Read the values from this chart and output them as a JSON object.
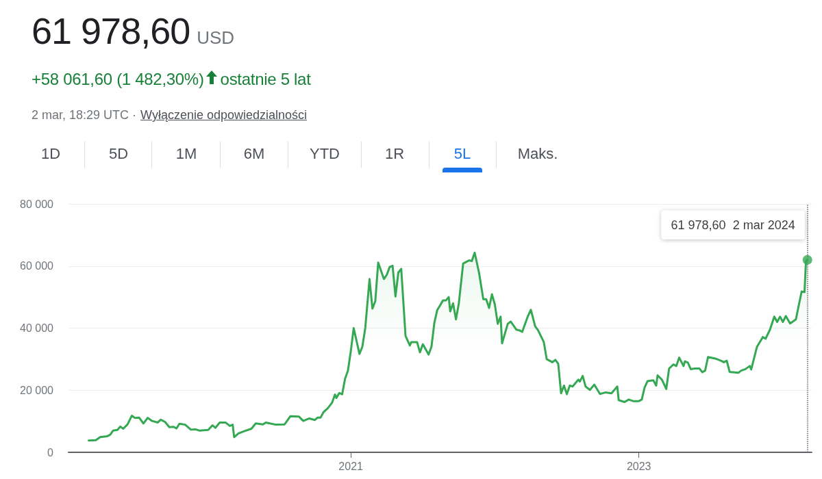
{
  "chart_data": {
    "type": "area",
    "title": "61 978,60",
    "subtitle": "+58 061,60 (1 482,30%)",
    "annotations": [
      "USD",
      "ostatnie 5 lat",
      "2 mar, 18:29 UTC ·",
      "Wyłączenie odpowiedzialności",
      "1D",
      "5D",
      "1M",
      "6M",
      "YTD",
      "1R",
      "5L",
      "Maks.",
      {
        "text": "61 978,60  2 mar 2024",
        "x": 2024.17,
        "y": 61978.6
      }
    ],
    "x": [
      2019.18,
      2019.23,
      2019.26,
      2019.31,
      2019.33,
      2019.35,
      2019.38,
      2019.4,
      2019.42,
      2019.45,
      2019.48,
      2019.5,
      2019.53,
      2019.56,
      2019.59,
      2019.62,
      2019.66,
      2019.68,
      2019.71,
      2019.74,
      2019.77,
      2019.79,
      2019.81,
      2019.85,
      2019.89,
      2019.92,
      2019.95,
      2020.01,
      2020.04,
      2020.06,
      2020.09,
      2020.13,
      2020.16,
      2020.18,
      2020.19,
      2020.22,
      2020.26,
      2020.31,
      2020.34,
      2020.39,
      2020.41,
      2020.48,
      2020.54,
      2020.55,
      2020.58,
      2020.64,
      2020.67,
      2020.71,
      2020.75,
      2020.77,
      2020.79,
      2020.81,
      2020.84,
      2020.87,
      2020.89,
      2020.9,
      2020.92,
      2020.94,
      2020.96,
      2020.98,
      2021.0,
      2021.02,
      2021.06,
      2021.08,
      2021.1,
      2021.13,
      2021.15,
      2021.17,
      2021.19,
      2021.23,
      2021.25,
      2021.27,
      2021.29,
      2021.31,
      2021.33,
      2021.35,
      2021.38,
      2021.41,
      2021.42,
      2021.46,
      2021.48,
      2021.5,
      2021.54,
      2021.56,
      2021.58,
      2021.6,
      2021.64,
      2021.66,
      2021.68,
      2021.69,
      2021.71,
      2021.73,
      2021.75,
      2021.78,
      2021.82,
      2021.84,
      2021.86,
      2021.89,
      2021.92,
      2021.94,
      2021.96,
      2021.98,
      2022.0,
      2022.02,
      2022.04,
      2022.05,
      2022.09,
      2022.11,
      2022.15,
      2022.17,
      2022.19,
      2022.23,
      2022.25,
      2022.28,
      2022.3,
      2022.34,
      2022.36,
      2022.4,
      2022.42,
      2022.44,
      2022.46,
      2022.48,
      2022.5,
      2022.52,
      2022.54,
      2022.58,
      2022.59,
      2022.61,
      2022.63,
      2022.66,
      2022.69,
      2022.73,
      2022.77,
      2022.81,
      2022.85,
      2022.86,
      2022.9,
      2022.93,
      2022.96,
      2023.0,
      2023.02,
      2023.04,
      2023.06,
      2023.1,
      2023.12,
      2023.13,
      2023.16,
      2023.19,
      2023.21,
      2023.24,
      2023.26,
      2023.28,
      2023.31,
      2023.32,
      2023.34,
      2023.36,
      2023.39,
      2023.42,
      2023.44,
      2023.46,
      2023.48,
      2023.53,
      2023.57,
      2023.59,
      2023.61,
      2023.63,
      2023.69,
      2023.71,
      2023.74,
      2023.77,
      2023.78,
      2023.82,
      2023.86,
      2023.88,
      2023.91,
      2023.94,
      2023.96,
      2023.98,
      2024.0,
      2024.02,
      2024.05,
      2024.09,
      2024.13,
      2024.15,
      2024.16,
      2024.17
    ],
    "series": [
      {
        "color": "#34a853",
        "values": [
          3800,
          3900,
          4900,
          5200,
          5700,
          7000,
          7200,
          8300,
          7600,
          9000,
          11800,
          11100,
          11200,
          9300,
          11100,
          10100,
          9600,
          10500,
          9800,
          8100,
          8200,
          7700,
          9200,
          8900,
          7300,
          7400,
          7000,
          7200,
          8700,
          7900,
          9600,
          9600,
          8500,
          8900,
          4900,
          6100,
          6800,
          7600,
          9300,
          9000,
          9600,
          8900,
          9000,
          9600,
          11600,
          11500,
          10100,
          10900,
          10400,
          11200,
          11200,
          12900,
          14200,
          16000,
          18600,
          17500,
          19100,
          18700,
          23700,
          26300,
          32600,
          40000,
          31700,
          34000,
          39900,
          55800,
          46300,
          48700,
          61100,
          55800,
          57200,
          59700,
          60100,
          50200,
          57900,
          59100,
          37500,
          34400,
          35500,
          35500,
          32200,
          34800,
          31500,
          34000,
          41700,
          45800,
          48900,
          48900,
          50000,
          45400,
          48000,
          42800,
          48000,
          60800,
          61800,
          61600,
          64300,
          57900,
          49300,
          49300,
          46500,
          50900,
          47600,
          41400,
          43700,
          35100,
          41400,
          42100,
          39500,
          39300,
          38800,
          43900,
          45900,
          40600,
          39300,
          35500,
          30000,
          29000,
          29800,
          28500,
          19000,
          21500,
          18700,
          21500,
          21200,
          23400,
          22800,
          24600,
          21200,
          20100,
          21800,
          18800,
          19300,
          19000,
          21200,
          16800,
          16200,
          17000,
          16500,
          16500,
          17000,
          20900,
          22900,
          23200,
          21500,
          24800,
          23400,
          20400,
          27000,
          28300,
          27800,
          30500,
          27800,
          29300,
          28900,
          26800,
          27000,
          27000,
          25800,
          26300,
          30700,
          30200,
          29500,
          29000,
          29500,
          25900,
          25600,
          26300,
          26800,
          27800,
          26700,
          34000,
          37100,
          36600,
          39500,
          43700,
          42000,
          43700,
          42000,
          43900,
          41500,
          42800,
          51800,
          51600,
          61600,
          61978.6
        ]
      }
    ],
    "xlim": [
      2019.04,
      2024.2
    ],
    "xticks": [
      2021,
      2023
    ],
    "ylim": [
      0,
      80000
    ],
    "yticks": [
      {
        "value": 0,
        "label": "0"
      },
      {
        "value": 20000,
        "label": "20 000"
      },
      {
        "value": 40000,
        "label": "40 000"
      },
      {
        "value": 60000,
        "label": "60 000"
      },
      {
        "value": 80000,
        "label": "80 000"
      }
    ],
    "ref_lines": [
      {
        "axis": "x",
        "value": 2024.17,
        "line_style": "dotted"
      }
    ],
    "grid": "y",
    "marker": "none",
    "line_style": "solid"
  }
}
